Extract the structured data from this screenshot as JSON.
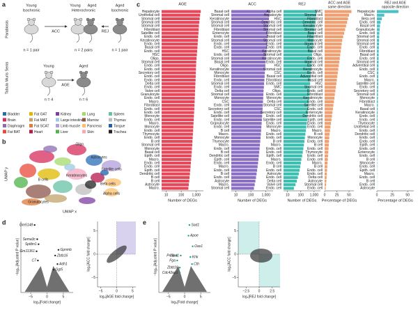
{
  "panel_labels": [
    "a",
    "b",
    "c",
    "d",
    "e"
  ],
  "panel_a": {
    "parabiosis": "Parabiosis",
    "tms": "Tabula Muris Senis",
    "young_iso": [
      "Young",
      "Isochronic"
    ],
    "hetero": [
      "Young",
      "Aged",
      "Heterochronic"
    ],
    "aged_iso": [
      "Aged",
      "Isochronic"
    ],
    "acc": "ACC",
    "rej": "REJ",
    "n_left": "n = 1 pair",
    "n_mid": "n = 2 pairs",
    "n_right": "n = 1 pair",
    "young": "Young",
    "aged": "Aged",
    "age": "AGE",
    "n_young": "n = 4",
    "n_aged": "n = 6"
  },
  "legend": [
    {
      "name": "Bladder",
      "color": "#2a6db5"
    },
    {
      "name": "Brain",
      "color": "#d62c5b"
    },
    {
      "name": "Diaphragm",
      "color": "#8c6bb1"
    },
    {
      "name": "Fat BAT",
      "color": "#e8483a"
    },
    {
      "name": "Fat GAT",
      "color": "#e0b800"
    },
    {
      "name": "Fat MAT",
      "color": "#c1a36a"
    },
    {
      "name": "Fat SCAT",
      "color": "#e07b39"
    },
    {
      "name": "Heart",
      "color": "#b5174f"
    },
    {
      "name": "Kidney",
      "color": "#7b3fa0"
    },
    {
      "name": "Large intestine",
      "color": "#9ecae1"
    },
    {
      "name": "Limb muscle",
      "color": "#b39ddb"
    },
    {
      "name": "Liver",
      "color": "#4db34a"
    },
    {
      "name": "Lung",
      "color": "#a6d96a"
    },
    {
      "name": "Marrow",
      "color": "#8c564b"
    },
    {
      "name": "Pancreas",
      "color": "#fdbf6f"
    },
    {
      "name": "Skin",
      "color": "#f4a7c0"
    },
    {
      "name": "Spleen",
      "color": "#66c2a5"
    },
    {
      "name": "Thymus",
      "color": "#bdbdbd"
    },
    {
      "name": "Tongue",
      "color": "#1f5fa8"
    },
    {
      "name": "Trachea",
      "color": "#222222"
    }
  ],
  "umap": {
    "x_label": "UMAP x",
    "y_label": "UMAP y",
    "labels": [
      "Oligo.",
      "Astrocytes",
      "Satellite cells",
      "Keratinocytes",
      "B cells",
      "Beta cells",
      "Alpha cells",
      "Granulocytes"
    ]
  },
  "chart_data": [
    {
      "type": "barh",
      "title": "AGE",
      "x_label": "Number of DEGs",
      "color": "#e8475a",
      "log_scale": true,
      "xlim": [
        5,
        3000
      ],
      "xticks": [
        10,
        100,
        {
          "value": 1000,
          "label": "1,000"
        }
      ],
      "categories": [
        "Hepatocyte",
        "Urothelial cell",
        "Stromal cell",
        "Stromal cell",
        "Stromal cell",
        "Fibroblast",
        "Satellite cell",
        "Endo. cell",
        "Keratinocyte",
        "Endo. cell",
        "Basal cell",
        "Endo. cell",
        "HSC",
        "Oligo.",
        "Stromal cell",
        "Endo. cell",
        "Endo. cell",
        "Secretory cell",
        "Endo. cell",
        "Endo. cell",
        "Delta cell",
        "Endo. cell",
        "Valve cell",
        "Granulocyte",
        "Endo. cell",
        "Macro.",
        "Fibroblast",
        "Endo. cell",
        "Endo. cell",
        "Monocyte",
        "Endo. cell",
        "Macro.",
        "Monocyte",
        "Endo. cell",
        "Thymocyte",
        "Endo. cell",
        "B cell",
        "Stromal cell",
        "Monocyte",
        "Basal cell",
        "Epith. cell",
        "Macro.",
        "Endo. cell",
        "Endo. cell",
        "Epith. cell",
        "Dendritic cell",
        "B cell",
        "B cell",
        "Astrocyte",
        "Macro."
      ],
      "values": [
        2000,
        1800,
        1700,
        1600,
        1500,
        1450,
        1400,
        1350,
        1300,
        1250,
        1200,
        1150,
        1100,
        1050,
        1000,
        980,
        960,
        940,
        920,
        900,
        880,
        860,
        840,
        820,
        800,
        780,
        760,
        740,
        720,
        700,
        680,
        660,
        640,
        620,
        600,
        580,
        560,
        540,
        520,
        500,
        480,
        460,
        440,
        420,
        400,
        380,
        360,
        340,
        320,
        300
      ]
    },
    {
      "type": "barh",
      "title": "ACC",
      "x_label": "Number of DEGs",
      "color": "#8b6fc7",
      "log_scale": true,
      "xlim": [
        5,
        3000
      ],
      "xticks": [
        10,
        100,
        {
          "value": 1000,
          "label": "1,000"
        }
      ],
      "categories": [
        "Basal cell",
        "Stromal cell",
        "Keratinocyte",
        "Stromal cell",
        "Stromal cell",
        "Fibroblast",
        "Enterocyte",
        "Endo. cell",
        "Stromal cell",
        "Endo. cell",
        "Endo. cell",
        "HSC",
        "Endo. cell",
        "Stromal cell",
        "Basal cell",
        "Oligo.",
        "Keratinocyte",
        "Monocyte",
        "Fibroblast",
        "Endo. cell",
        "Stromal cell",
        "Endo. cell",
        "Delta cell",
        "Stromal cell",
        "Monocyte",
        "CSC",
        "Endo. cell",
        "Secretory cell",
        "Endo. cell",
        "Satellite cell",
        "Endo. cell",
        "Granulocyte",
        "Endo. cell",
        "B cell",
        "Macro.",
        "Monocyte",
        "Thymocyte",
        "Macro.",
        "Endo. cell",
        "B cell",
        "Dendritic cell",
        "Epith. cell",
        "Endo. cell",
        "Macro.",
        "Endo. cell",
        "B cell",
        "Endo. cell",
        "Astrocyte",
        "Macro.",
        "Stromal cell"
      ],
      "values": [
        1800,
        1700,
        1600,
        1500,
        1450,
        1400,
        1350,
        1300,
        1250,
        1200,
        1150,
        1100,
        1050,
        1000,
        960,
        920,
        880,
        850,
        820,
        790,
        760,
        730,
        700,
        680,
        660,
        640,
        620,
        600,
        580,
        560,
        540,
        520,
        500,
        480,
        460,
        440,
        420,
        400,
        380,
        360,
        340,
        320,
        300,
        280,
        260,
        240,
        220,
        200,
        180,
        160
      ]
    },
    {
      "type": "barh",
      "title": "REJ",
      "x_label": "Number of DEGs",
      "color": "#3bbfb0",
      "log_scale": true,
      "xlim": [
        5,
        3000
      ],
      "xticks": [
        10,
        100,
        {
          "value": 1000,
          "label": "1,000"
        }
      ],
      "categories": [
        "Alpha cell",
        "Hepatocyte",
        "HSC",
        "Dendritic cell",
        "Stromal cell",
        "Stromal cell",
        "Fibroblast",
        "Basal cell",
        "Stromal cell",
        "Endo. cell",
        "Endo. cell",
        "Keratinocyte",
        "Stromal cell",
        "Keratinocyte",
        "Endo. cell",
        "HSC",
        "Stromal cell",
        "CSC",
        "Basal cell",
        "Fibroblast",
        "Endo. cell",
        "SMC",
        "Oligo.",
        "Endo. cell",
        "Monocyte",
        "Delta cell",
        "Stromal cell",
        "CSC",
        "Secretory cell",
        "Endo. cell",
        "Satellite cell",
        "Endo. cell",
        "Monocyte",
        "Macro.",
        "Endo. cell",
        "Endo. cell",
        "B cell",
        "Macro.",
        "Endo. cell",
        "Endo. cell",
        "Epith. cell",
        "Macro.",
        "Endo. cell",
        "B cell",
        "Endo. cell",
        "Astrocyte",
        "Endo. cell",
        "Delta cell",
        "Valve cell",
        "Endo. cell"
      ],
      "values": [
        1600,
        1400,
        1300,
        1200,
        1100,
        1050,
        1000,
        950,
        900,
        850,
        800,
        760,
        720,
        690,
        660,
        630,
        600,
        570,
        540,
        520,
        500,
        480,
        460,
        440,
        420,
        400,
        380,
        360,
        340,
        320,
        300,
        280,
        260,
        240,
        220,
        200,
        185,
        170,
        155,
        140,
        125,
        110,
        100,
        90,
        80,
        70,
        60,
        50,
        40,
        30
      ]
    },
    {
      "type": "barh",
      "title": [
        "ACC and AGE",
        "same direction"
      ],
      "x_label": "Percentage of DEGs",
      "color": "#f0a070",
      "log_scale": false,
      "xlim": [
        0,
        60
      ],
      "xticks": [
        0,
        25,
        50
      ],
      "categories": [
        "SMC",
        "Stromal cell",
        "Fibroblast",
        "Dendritic cell",
        "Keratinocyte",
        "Stromal cell",
        "Basal cell",
        "Fibroblast",
        "Monocyte",
        "Stromal cell",
        "Endo. cell",
        "Basal cell",
        "Oligo.",
        "Endo. cell",
        "Stromal cell",
        "Endo. cell",
        "Keratinocyte",
        "Endo. cell",
        "Adventitial cell",
        "Basal cell",
        "HSC",
        "Stromal cell",
        "Endo. cell",
        "Fibroblast",
        "Keratinocyte",
        "Endo. cell",
        "Satellite cell",
        "Endo. cell",
        "Enterocyte",
        "Dendritic cell",
        "Epith. cell",
        "Endo. cell",
        "Endo. cell",
        "Macro.",
        "B cell",
        "Monocyte",
        "Endo. cell",
        "B cell",
        "Endo. cell",
        "Thymocyte",
        "Endo. cell",
        "Endo. cell",
        "Macro.",
        "B cell",
        "Endo. cell",
        "Endo. cell",
        "Delta cell",
        "Astrocyte",
        "Stromal cell",
        "Endo. cell"
      ],
      "values": [
        55,
        50,
        48,
        46,
        44,
        42,
        40,
        38,
        36,
        35,
        34,
        33,
        32,
        31,
        30,
        29,
        28,
        27,
        26,
        25,
        24,
        23,
        22,
        21,
        20,
        19,
        18,
        17,
        16,
        15,
        14,
        13,
        12,
        11,
        10,
        9.5,
        9,
        8.5,
        8,
        7.5,
        7,
        6.5,
        6,
        5.5,
        5,
        4.5,
        4,
        3.5,
        3,
        2
      ]
    },
    {
      "type": "barh",
      "title": [
        "REJ and AGE",
        "opposite direction"
      ],
      "x_label": "Percentage of DEGs",
      "color": "#4cc0c8",
      "log_scale": false,
      "xlim": [
        0,
        60
      ],
      "xticks": [
        0,
        25,
        50
      ],
      "categories": [
        "Hepatocyte",
        "Macro.",
        "Beta cell",
        "Endo. cell",
        "Basal cell",
        "Granulocyte",
        "Endo. cell",
        "Stromal cell",
        "Stromal cell",
        "Stromal cell",
        "Endo. cell",
        "Fibroblast",
        "Basal cell",
        "Endo. cell",
        "Stromal cell",
        "Adventitial cell",
        "Endo. cell",
        "CSC",
        "Endo. cell",
        "Macro.",
        "Satellite cell",
        "Endo. cell",
        "Secretory cell",
        "Stromal cell",
        "Monocyte",
        "Fibroblast",
        "Macro.",
        "Basal cell",
        "Keratinocyte",
        "Endo. cell",
        "Endo. cell",
        "Thymocyte",
        "Urothelial cell",
        "Endo. cell",
        "Dendritic cell",
        "Endo. cell",
        "Endo. cell",
        "Epith. cell",
        "Endo. cell",
        "Enterocyte",
        "Endo. cell",
        "B cell",
        "Monocyte",
        "Endo. cell",
        "Epith. cell",
        "Macro.",
        "Endo. cell",
        "B cell",
        "Endo. cell",
        "Astrocyte"
      ],
      "values": [
        35,
        12,
        8,
        6,
        5,
        4.5,
        4,
        3.8,
        3.6,
        3.4,
        3.2,
        3,
        2.9,
        2.8,
        2.7,
        2.6,
        2.5,
        2.4,
        2.3,
        2.2,
        2.1,
        2,
        1.9,
        1.8,
        1.7,
        1.6,
        1.5,
        1.4,
        1.3,
        1.2,
        1.1,
        1,
        0.95,
        0.9,
        0.85,
        0.8,
        0.75,
        0.7,
        0.65,
        0.6,
        0.55,
        0.5,
        0.45,
        0.4,
        0.35,
        0.3,
        0.25,
        0.2,
        0.15,
        0.1
      ]
    },
    {
      "type": "scatter",
      "x_label": "log₂[Fold change]",
      "y_label": "−log₁₀[Adjusted P value]",
      "xlim": [
        -8,
        8
      ],
      "xticks": [
        {
          "value": -5,
          "label": "−5"
        },
        0,
        5
      ],
      "ylim": [
        0,
        100
      ],
      "point_color": "#222222",
      "labels": [
        "Gm5148",
        "Sema3c",
        "Spitbn1",
        "Gm11361",
        "C7",
        "Gpnmb",
        "Zbtb16",
        "Adh1",
        "Ggt5"
      ],
      "x": [
        -3.8,
        -3.0,
        -2.6,
        -3.2,
        -2.8,
        3.5,
        2.5,
        3.2,
        2.0
      ],
      "values": [
        95,
        75,
        68,
        58,
        45,
        60,
        52,
        40,
        32
      ]
    },
    {
      "type": "scatter",
      "x_label": "log₂[AGE fold change]",
      "y_label": "log₂[ACC fold change]",
      "xlim": [
        -6,
        6
      ],
      "xticks": [
        {
          "value": -5,
          "label": "−5"
        },
        0,
        5
      ],
      "ylim": [
        -7,
        7
      ],
      "yticks": [
        {
          "value": -5,
          "label": "−5"
        },
        0,
        5
      ],
      "zero_lines": true,
      "shaded_quadrants": [
        "upper-right"
      ],
      "shade_color": "#d9d2ee"
    },
    {
      "type": "scatter",
      "x_label": "log₂[Fold change]",
      "y_label": "−log₁₀[Adjusted P value]",
      "xlim": [
        -8,
        8
      ],
      "xticks": [
        {
          "value": -5,
          "label": "−5"
        },
        0,
        5
      ],
      "ylim": [
        0,
        100
      ],
      "point_color": "#1a9e8f",
      "labels": [
        "Sod1",
        "Apoe",
        "Oas1",
        "Khk",
        "Cth",
        "P4hb",
        "Scd1",
        "Fga",
        "Zbtb16",
        "Cdc42ep1"
      ],
      "x": [
        1.5,
        1.2,
        2.5,
        1.8,
        2.3,
        -2.5,
        -1.2,
        -2.3,
        -1.5,
        -1.5
      ],
      "values": [
        95,
        80,
        65,
        50,
        40,
        52,
        52,
        45,
        35,
        28
      ]
    },
    {
      "type": "scatter",
      "x_label": "log₂[REJ fold change]",
      "y_label": "log₂[ACC fold change]",
      "xlim": [
        -4,
        4
      ],
      "xticks": [
        {
          "value": -2.5,
          "label": "−2.5"
        },
        0,
        2.5
      ],
      "ylim": [
        -7,
        7
      ],
      "yticks": [
        {
          "value": -5,
          "label": "−5"
        },
        0,
        5
      ],
      "zero_lines": true,
      "shaded_quadrants": [
        "upper-left",
        "lower-right"
      ],
      "shade_color": "#cdeeea"
    }
  ]
}
